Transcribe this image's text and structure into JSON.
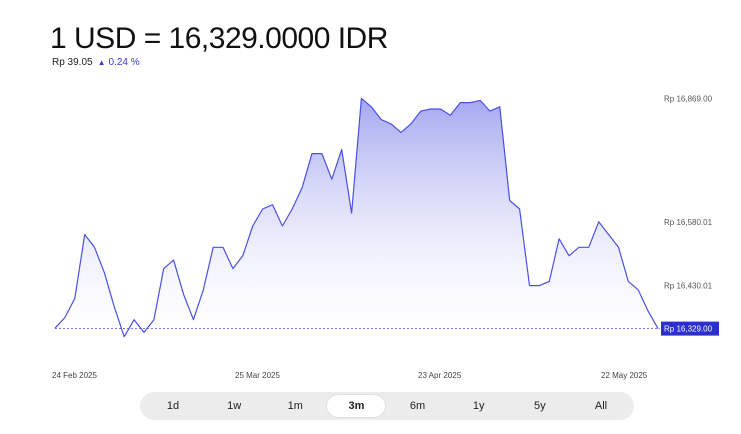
{
  "header": {
    "title": "1 USD = 16,329.0000 IDR",
    "change_value": "Rp 39.05",
    "change_arrow": "▲",
    "change_percent": "0.24 %"
  },
  "ranges": {
    "options": [
      "1d",
      "1w",
      "1m",
      "3m",
      "6m",
      "1y",
      "5y",
      "All"
    ],
    "selected": "3m"
  },
  "colors": {
    "line": "#4b50e0",
    "fill_top": "#9fa2ef",
    "accent_label": "#2b2fd2"
  },
  "chart_data": {
    "type": "area",
    "title": "",
    "xlabel": "",
    "ylabel": "",
    "x_tick_labels": [
      "24 Feb 2025",
      "25 Mar 2025",
      "23 Apr 2025",
      "22 May 2025"
    ],
    "y_tick_labels": [
      "Rp 16,869.00",
      "Rp 16,580.01",
      "Rp 16,430.01"
    ],
    "current_label": "Rp 16,329.00",
    "y_ticks": [
      16869,
      16580.01,
      16430.01
    ],
    "current_value": 16329,
    "ylim": [
      16220,
      16960
    ],
    "grid": false,
    "series": [
      {
        "values": [
          16330,
          16355,
          16400,
          16550,
          16520,
          16460,
          16380,
          16310,
          16350,
          16320,
          16350,
          16470,
          16490,
          16410,
          16350,
          16420,
          16520,
          16520,
          16470,
          16500,
          16570,
          16610,
          16620,
          16570,
          16610,
          16660,
          16740,
          16740,
          16680,
          16750,
          16600,
          16870,
          16850,
          16820,
          16810,
          16790,
          16810,
          16840,
          16845,
          16845,
          16830,
          16860,
          16860,
          16865,
          16840,
          16850,
          16630,
          16610,
          16430,
          16430,
          16440,
          16540,
          16500,
          16520,
          16520,
          16580,
          16550,
          16520,
          16440,
          16420,
          16370,
          16329
        ]
      }
    ]
  }
}
